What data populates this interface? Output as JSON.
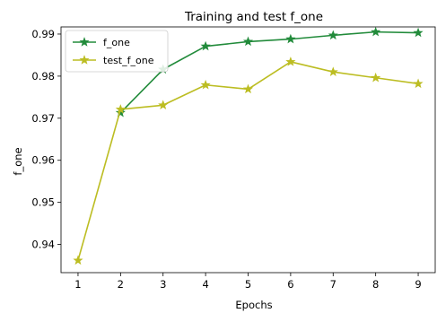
{
  "chart_data": {
    "type": "line",
    "title": "Training and test f_one",
    "xlabel": "Epochs",
    "ylabel": "f_one",
    "x": [
      1,
      2,
      3,
      4,
      5,
      6,
      7,
      8,
      9
    ],
    "xticks": [
      "1",
      "2",
      "3",
      "4",
      "5",
      "6",
      "7",
      "8",
      "9"
    ],
    "yticks": [
      "0.94",
      "0.95",
      "0.96",
      "0.97",
      "0.98",
      "0.99"
    ],
    "xlim": [
      0.6,
      9.4
    ],
    "ylim": [
      0.9333,
      0.9917
    ],
    "grid": false,
    "legend_position": "top-left",
    "series": [
      {
        "name": "f_one",
        "color": "#228b3b",
        "marker": "star",
        "values": [
          null,
          0.9713,
          0.9816,
          0.9871,
          0.9882,
          0.9888,
          0.9897,
          0.9905,
          0.9903
        ]
      },
      {
        "name": "test_f_one",
        "color": "#bcbd22",
        "marker": "star",
        "values": [
          0.9362,
          0.9721,
          0.9731,
          0.9779,
          0.9769,
          0.9834,
          0.981,
          0.9796,
          0.9782
        ]
      }
    ]
  }
}
